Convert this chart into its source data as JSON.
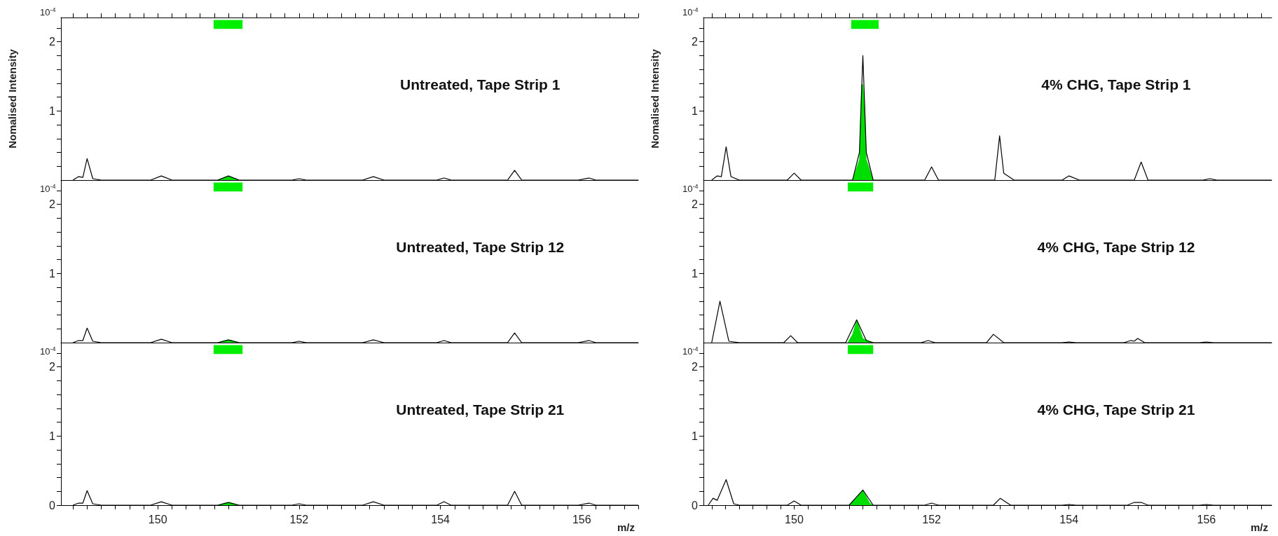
{
  "chart_data": [
    {
      "type": "line",
      "title": "Untreated, Tape Strip 1",
      "ylabel": "Nomalised Intensity",
      "annotations": [
        "10$^{-4}$"
      ],
      "xlim": [
        148.63,
        156.8
      ],
      "ylim": [
        0,
        2.35
      ],
      "tick_labels": "y",
      "grid": false,
      "marker": "none",
      "xticks": [
        {
          "value": 148.8,
          "label": null
        },
        {
          "value": 149,
          "label": null
        },
        {
          "value": 149.2,
          "label": null
        },
        {
          "value": 149.4,
          "label": null
        },
        {
          "value": 149.6,
          "label": null
        },
        {
          "value": 149.8,
          "label": null
        },
        150,
        {
          "value": 150.2,
          "label": null
        },
        {
          "value": 150.4,
          "label": null
        },
        {
          "value": 150.6,
          "label": null
        },
        {
          "value": 150.8,
          "label": null
        },
        {
          "value": 151,
          "label": null
        },
        {
          "value": 151.2,
          "label": null
        },
        {
          "value": 151.4,
          "label": null
        },
        {
          "value": 151.6,
          "label": null
        },
        {
          "value": 151.8,
          "label": null
        },
        152,
        {
          "value": 152.2,
          "label": null
        },
        {
          "value": 152.4,
          "label": null
        },
        {
          "value": 152.6,
          "label": null
        },
        {
          "value": 152.8,
          "label": null
        },
        {
          "value": 153,
          "label": null
        },
        {
          "value": 153.2,
          "label": null
        },
        {
          "value": 153.4,
          "label": null
        },
        {
          "value": 153.6,
          "label": null
        },
        {
          "value": 153.8,
          "label": null
        },
        154,
        {
          "value": 154.2,
          "label": null
        },
        {
          "value": 154.4,
          "label": null
        },
        {
          "value": 154.6,
          "label": null
        },
        {
          "value": 154.8,
          "label": null
        },
        {
          "value": 155,
          "label": null
        },
        {
          "value": 155.2,
          "label": null
        },
        {
          "value": 155.4,
          "label": null
        },
        {
          "value": 155.6,
          "label": null
        },
        {
          "value": 155.8,
          "label": null
        },
        156,
        {
          "value": 156.2,
          "label": null
        },
        {
          "value": 156.4,
          "label": null
        },
        {
          "value": 156.6,
          "label": null
        },
        {
          "value": 156.8,
          "label": null
        }
      ],
      "yticks": [
        {
          "value": 0,
          "label": null
        },
        {
          "value": 0.2,
          "label": null
        },
        {
          "value": 0.4,
          "label": null
        },
        {
          "value": 0.6,
          "label": null
        },
        {
          "value": 0.8,
          "label": null
        },
        1,
        {
          "value": 1.2,
          "label": null
        },
        {
          "value": 1.4,
          "label": null
        },
        {
          "value": 1.6,
          "label": null
        },
        {
          "value": 1.8,
          "label": null
        },
        2,
        {
          "value": 2.2,
          "label": null
        }
      ],
      "bands": [
        {
          "axis": "x",
          "from": 150.79,
          "to": 151.2,
          "color": "#00ee00"
        }
      ],
      "series": [
        {
          "type": "line",
          "color": "#000000",
          "x": [
            148.8,
            148.88,
            148.94,
            149.0,
            149.08,
            149.2,
            149.9,
            150.05,
            150.2,
            150.85,
            151.0,
            151.15,
            151.9,
            152.0,
            152.1,
            152.9,
            153.05,
            153.2,
            153.95,
            154.05,
            154.15,
            154.95,
            155.05,
            155.15,
            155.95,
            156.1,
            156.2,
            156.8
          ],
          "values": [
            0,
            0.05,
            0.04,
            0.31,
            0.02,
            0,
            0,
            0.06,
            0,
            0,
            0.06,
            0,
            0,
            0.02,
            0,
            0,
            0.05,
            0,
            0,
            0.03,
            0,
            0,
            0.14,
            0,
            0,
            0.03,
            0,
            0
          ]
        },
        {
          "type": "area",
          "color": "#00dd00",
          "x": [
            150.85,
            150.95,
            151.0,
            151.05,
            151.15
          ],
          "values": [
            0,
            0.04,
            0.06,
            0.04,
            0
          ]
        }
      ]
    },
    {
      "type": "line",
      "title": "4% CHG, Tape Strip 1",
      "ylabel": "Nomalised Intensity",
      "annotations": [
        "10$^{-4}$"
      ],
      "xlim": [
        148.68,
        156.95
      ],
      "ylim": [
        0,
        2.35
      ],
      "tick_labels": "y",
      "grid": false,
      "marker": "none",
      "xticks": [
        {
          "value": 148.8,
          "label": null
        },
        {
          "value": 149,
          "label": null
        },
        {
          "value": 149.2,
          "label": null
        },
        {
          "value": 149.4,
          "label": null
        },
        {
          "value": 149.6,
          "label": null
        },
        {
          "value": 149.8,
          "label": null
        },
        150,
        {
          "value": 150.2,
          "label": null
        },
        {
          "value": 150.4,
          "label": null
        },
        {
          "value": 150.6,
          "label": null
        },
        {
          "value": 150.8,
          "label": null
        },
        {
          "value": 151,
          "label": null
        },
        {
          "value": 151.2,
          "label": null
        },
        {
          "value": 151.4,
          "label": null
        },
        {
          "value": 151.6,
          "label": null
        },
        {
          "value": 151.8,
          "label": null
        },
        152,
        {
          "value": 152.2,
          "label": null
        },
        {
          "value": 152.4,
          "label": null
        },
        {
          "value": 152.6,
          "label": null
        },
        {
          "value": 152.8,
          "label": null
        },
        {
          "value": 153,
          "label": null
        },
        {
          "value": 153.2,
          "label": null
        },
        {
          "value": 153.4,
          "label": null
        },
        {
          "value": 153.6,
          "label": null
        },
        {
          "value": 153.8,
          "label": null
        },
        154,
        {
          "value": 154.2,
          "label": null
        },
        {
          "value": 154.4,
          "label": null
        },
        {
          "value": 154.6,
          "label": null
        },
        {
          "value": 154.8,
          "label": null
        },
        {
          "value": 155,
          "label": null
        },
        {
          "value": 155.2,
          "label": null
        },
        {
          "value": 155.4,
          "label": null
        },
        {
          "value": 155.6,
          "label": null
        },
        {
          "value": 155.8,
          "label": null
        },
        156,
        {
          "value": 156.2,
          "label": null
        },
        {
          "value": 156.4,
          "label": null
        },
        {
          "value": 156.6,
          "label": null
        },
        {
          "value": 156.8,
          "label": null
        }
      ],
      "yticks": [
        {
          "value": 0,
          "label": null
        },
        {
          "value": 0.2,
          "label": null
        },
        {
          "value": 0.4,
          "label": null
        },
        {
          "value": 0.6,
          "label": null
        },
        {
          "value": 0.8,
          "label": null
        },
        1,
        {
          "value": 1.2,
          "label": null
        },
        {
          "value": 1.4,
          "label": null
        },
        {
          "value": 1.6,
          "label": null
        },
        {
          "value": 1.8,
          "label": null
        },
        2,
        {
          "value": 2.2,
          "label": null
        }
      ],
      "bands": [
        {
          "axis": "x",
          "from": 150.83,
          "to": 151.23,
          "color": "#00ee00"
        }
      ],
      "series": [
        {
          "type": "line",
          "color": "#000000",
          "x": [
            148.8,
            148.88,
            148.94,
            149.01,
            149.08,
            149.2,
            149.9,
            150.0,
            150.1,
            150.85,
            150.95,
            151.0,
            151.05,
            151.15,
            151.9,
            152.0,
            152.1,
            152.92,
            152.99,
            153.05,
            153.2,
            153.9,
            154.0,
            154.15,
            154.95,
            155.05,
            155.15,
            155.95,
            156.05,
            156.15,
            156.95
          ],
          "values": [
            0,
            0.06,
            0.05,
            0.48,
            0.05,
            0,
            0,
            0.1,
            0,
            0,
            0.4,
            1.8,
            0.4,
            0,
            0,
            0.19,
            0,
            0,
            0.64,
            0.1,
            0,
            0,
            0.06,
            0,
            0,
            0.26,
            0,
            0,
            0.02,
            0,
            0
          ]
        },
        {
          "type": "area",
          "color": "#00dd00",
          "x": [
            150.85,
            150.95,
            150.98,
            151.0,
            151.03,
            151.05,
            151.15
          ],
          "values": [
            0,
            0.3,
            1.38,
            1.38,
            1.0,
            0.3,
            0
          ]
        }
      ]
    },
    {
      "type": "line",
      "title": "Untreated, Tape Strip 12",
      "annotations": [
        "10$^{-4}$"
      ],
      "xlim": [
        148.63,
        156.8
      ],
      "ylim": [
        0,
        2.35
      ],
      "tick_labels": "y",
      "grid": false,
      "marker": "none",
      "xticks": [
        {
          "value": 148.8,
          "label": null
        },
        {
          "value": 149,
          "label": null
        },
        {
          "value": 149.2,
          "label": null
        },
        {
          "value": 149.4,
          "label": null
        },
        {
          "value": 149.6,
          "label": null
        },
        {
          "value": 149.8,
          "label": null
        },
        150,
        {
          "value": 150.2,
          "label": null
        },
        {
          "value": 150.4,
          "label": null
        },
        {
          "value": 150.6,
          "label": null
        },
        {
          "value": 150.8,
          "label": null
        },
        {
          "value": 151,
          "label": null
        },
        {
          "value": 151.2,
          "label": null
        },
        {
          "value": 151.4,
          "label": null
        },
        {
          "value": 151.6,
          "label": null
        },
        {
          "value": 151.8,
          "label": null
        },
        152,
        {
          "value": 152.2,
          "label": null
        },
        {
          "value": 152.4,
          "label": null
        },
        {
          "value": 152.6,
          "label": null
        },
        {
          "value": 152.8,
          "label": null
        },
        {
          "value": 153,
          "label": null
        },
        {
          "value": 153.2,
          "label": null
        },
        {
          "value": 153.4,
          "label": null
        },
        {
          "value": 153.6,
          "label": null
        },
        {
          "value": 153.8,
          "label": null
        },
        154,
        {
          "value": 154.2,
          "label": null
        },
        {
          "value": 154.4,
          "label": null
        },
        {
          "value": 154.6,
          "label": null
        },
        {
          "value": 154.8,
          "label": null
        },
        {
          "value": 155,
          "label": null
        },
        {
          "value": 155.2,
          "label": null
        },
        {
          "value": 155.4,
          "label": null
        },
        {
          "value": 155.6,
          "label": null
        },
        {
          "value": 155.8,
          "label": null
        },
        156,
        {
          "value": 156.2,
          "label": null
        },
        {
          "value": 156.4,
          "label": null
        },
        {
          "value": 156.6,
          "label": null
        },
        {
          "value": 156.8,
          "label": null
        }
      ],
      "yticks": [
        {
          "value": 0,
          "label": null
        },
        {
          "value": 0.2,
          "label": null
        },
        {
          "value": 0.4,
          "label": null
        },
        {
          "value": 0.6,
          "label": null
        },
        {
          "value": 0.8,
          "label": null
        },
        1,
        {
          "value": 1.2,
          "label": null
        },
        {
          "value": 1.4,
          "label": null
        },
        {
          "value": 1.6,
          "label": null
        },
        {
          "value": 1.8,
          "label": null
        },
        2,
        {
          "value": 2.2,
          "label": null
        }
      ],
      "bands": [
        {
          "axis": "x",
          "from": 150.79,
          "to": 151.2,
          "color": "#00ee00"
        }
      ],
      "series": [
        {
          "type": "line",
          "color": "#000000",
          "x": [
            148.8,
            148.88,
            148.94,
            149.0,
            149.08,
            149.2,
            149.9,
            150.05,
            150.2,
            150.85,
            151.0,
            151.15,
            151.9,
            152.0,
            152.1,
            152.9,
            153.05,
            153.2,
            153.95,
            154.05,
            154.15,
            154.95,
            155.05,
            155.15,
            155.95,
            156.1,
            156.2,
            156.8
          ],
          "values": [
            0,
            0.03,
            0.03,
            0.21,
            0.02,
            0,
            0,
            0.05,
            0,
            0,
            0.04,
            0,
            0,
            0.02,
            0,
            0,
            0.04,
            0,
            0,
            0.03,
            0,
            0,
            0.14,
            0,
            0,
            0.03,
            0,
            0
          ]
        },
        {
          "type": "area",
          "color": "#00dd00",
          "x": [
            150.85,
            150.95,
            151.0,
            151.05,
            151.15
          ],
          "values": [
            0,
            0.03,
            0.04,
            0.03,
            0
          ]
        }
      ]
    },
    {
      "type": "line",
      "title": "4% CHG, Tape Strip 12",
      "annotations": [
        "10$^{-4}$"
      ],
      "xlim": [
        148.68,
        156.95
      ],
      "ylim": [
        0,
        2.35
      ],
      "tick_labels": "y",
      "grid": false,
      "marker": "none",
      "xticks": [
        {
          "value": 148.8,
          "label": null
        },
        {
          "value": 149,
          "label": null
        },
        {
          "value": 149.2,
          "label": null
        },
        {
          "value": 149.4,
          "label": null
        },
        {
          "value": 149.6,
          "label": null
        },
        {
          "value": 149.8,
          "label": null
        },
        150,
        {
          "value": 150.2,
          "label": null
        },
        {
          "value": 150.4,
          "label": null
        },
        {
          "value": 150.6,
          "label": null
        },
        {
          "value": 150.8,
          "label": null
        },
        {
          "value": 151,
          "label": null
        },
        {
          "value": 151.2,
          "label": null
        },
        {
          "value": 151.4,
          "label": null
        },
        {
          "value": 151.6,
          "label": null
        },
        {
          "value": 151.8,
          "label": null
        },
        152,
        {
          "value": 152.2,
          "label": null
        },
        {
          "value": 152.4,
          "label": null
        },
        {
          "value": 152.6,
          "label": null
        },
        {
          "value": 152.8,
          "label": null
        },
        {
          "value": 153,
          "label": null
        },
        {
          "value": 153.2,
          "label": null
        },
        {
          "value": 153.4,
          "label": null
        },
        {
          "value": 153.6,
          "label": null
        },
        {
          "value": 153.8,
          "label": null
        },
        154,
        {
          "value": 154.2,
          "label": null
        },
        {
          "value": 154.4,
          "label": null
        },
        {
          "value": 154.6,
          "label": null
        },
        {
          "value": 154.8,
          "label": null
        },
        {
          "value": 155,
          "label": null
        },
        {
          "value": 155.2,
          "label": null
        },
        {
          "value": 155.4,
          "label": null
        },
        {
          "value": 155.6,
          "label": null
        },
        {
          "value": 155.8,
          "label": null
        },
        156,
        {
          "value": 156.2,
          "label": null
        },
        {
          "value": 156.4,
          "label": null
        },
        {
          "value": 156.6,
          "label": null
        },
        {
          "value": 156.8,
          "label": null
        }
      ],
      "yticks": [
        {
          "value": 0,
          "label": null
        },
        {
          "value": 0.2,
          "label": null
        },
        {
          "value": 0.4,
          "label": null
        },
        {
          "value": 0.6,
          "label": null
        },
        {
          "value": 0.8,
          "label": null
        },
        1,
        {
          "value": 1.2,
          "label": null
        },
        {
          "value": 1.4,
          "label": null
        },
        {
          "value": 1.6,
          "label": null
        },
        {
          "value": 1.8,
          "label": null
        },
        2,
        {
          "value": 2.2,
          "label": null
        }
      ],
      "bands": [
        {
          "axis": "x",
          "from": 150.78,
          "to": 151.15,
          "color": "#00ee00"
        }
      ],
      "series": [
        {
          "type": "line",
          "color": "#000000",
          "x": [
            148.8,
            148.92,
            149.05,
            149.2,
            149.85,
            149.95,
            150.05,
            150.75,
            150.91,
            151.05,
            151.15,
            151.85,
            151.95,
            152.05,
            152.8,
            152.9,
            153.05,
            153.9,
            154.0,
            154.1,
            154.8,
            154.9,
            154.95,
            155.0,
            155.1,
            155.9,
            156.0,
            156.1,
            156.95
          ],
          "values": [
            0,
            0.6,
            0.02,
            0,
            0,
            0.1,
            0,
            0,
            0.33,
            0.03,
            0,
            0,
            0.03,
            0,
            0,
            0.12,
            0,
            0,
            0.01,
            0,
            0,
            0.03,
            0.02,
            0.06,
            0,
            0,
            0.01,
            0,
            0
          ]
        },
        {
          "type": "area",
          "color": "#00dd00",
          "x": [
            150.78,
            150.85,
            150.91,
            151.0,
            151.15
          ],
          "values": [
            0,
            0.12,
            0.33,
            0.06,
            0
          ]
        }
      ]
    },
    {
      "type": "line",
      "title": "Untreated, Tape Strip 21",
      "xlabel": "m/z",
      "annotations": [
        "10$^{-4}$"
      ],
      "xlim": [
        148.63,
        156.8
      ],
      "ylim": [
        0,
        2.35
      ],
      "grid": false,
      "marker": "none",
      "xticks": [
        {
          "value": 148.8,
          "label": null
        },
        {
          "value": 149,
          "label": null
        },
        {
          "value": 149.2,
          "label": null
        },
        {
          "value": 149.4,
          "label": null
        },
        {
          "value": 149.6,
          "label": null
        },
        {
          "value": 149.8,
          "label": null
        },
        150,
        {
          "value": 150.2,
          "label": null
        },
        {
          "value": 150.4,
          "label": null
        },
        {
          "value": 150.6,
          "label": null
        },
        {
          "value": 150.8,
          "label": null
        },
        {
          "value": 151,
          "label": null
        },
        {
          "value": 151.2,
          "label": null
        },
        {
          "value": 151.4,
          "label": null
        },
        {
          "value": 151.6,
          "label": null
        },
        {
          "value": 151.8,
          "label": null
        },
        152,
        {
          "value": 152.2,
          "label": null
        },
        {
          "value": 152.4,
          "label": null
        },
        {
          "value": 152.6,
          "label": null
        },
        {
          "value": 152.8,
          "label": null
        },
        {
          "value": 153,
          "label": null
        },
        {
          "value": 153.2,
          "label": null
        },
        {
          "value": 153.4,
          "label": null
        },
        {
          "value": 153.6,
          "label": null
        },
        {
          "value": 153.8,
          "label": null
        },
        154,
        {
          "value": 154.2,
          "label": null
        },
        {
          "value": 154.4,
          "label": null
        },
        {
          "value": 154.6,
          "label": null
        },
        {
          "value": 154.8,
          "label": null
        },
        {
          "value": 155,
          "label": null
        },
        {
          "value": 155.2,
          "label": null
        },
        {
          "value": 155.4,
          "label": null
        },
        {
          "value": 155.6,
          "label": null
        },
        {
          "value": 155.8,
          "label": null
        },
        156,
        {
          "value": 156.2,
          "label": null
        },
        {
          "value": 156.4,
          "label": null
        },
        {
          "value": 156.6,
          "label": null
        },
        {
          "value": 156.8,
          "label": null
        }
      ],
      "yticks": [
        0,
        {
          "value": 0.2,
          "label": null
        },
        {
          "value": 0.4,
          "label": null
        },
        {
          "value": 0.6,
          "label": null
        },
        {
          "value": 0.8,
          "label": null
        },
        1,
        {
          "value": 1.2,
          "label": null
        },
        {
          "value": 1.4,
          "label": null
        },
        {
          "value": 1.6,
          "label": null
        },
        {
          "value": 1.8,
          "label": null
        },
        2,
        {
          "value": 2.2,
          "label": null
        }
      ],
      "bands": [
        {
          "axis": "x",
          "from": 150.79,
          "to": 151.2,
          "color": "#00ee00"
        }
      ],
      "series": [
        {
          "type": "line",
          "color": "#000000",
          "x": [
            148.8,
            148.88,
            148.94,
            149.0,
            149.08,
            149.2,
            149.9,
            150.05,
            150.2,
            150.85,
            151.0,
            151.15,
            151.9,
            152.0,
            152.1,
            152.9,
            153.05,
            153.2,
            153.95,
            154.05,
            154.15,
            154.95,
            155.05,
            155.15,
            155.95,
            156.1,
            156.2,
            156.8
          ],
          "values": [
            0,
            0.03,
            0.03,
            0.21,
            0.02,
            0,
            0,
            0.05,
            0,
            0,
            0.04,
            0,
            0,
            0.02,
            0,
            0,
            0.05,
            0,
            0,
            0.05,
            0,
            0,
            0.2,
            0,
            0,
            0.03,
            0,
            0
          ]
        },
        {
          "type": "area",
          "color": "#00dd00",
          "x": [
            150.85,
            150.95,
            151.0,
            151.05,
            151.15
          ],
          "values": [
            0,
            0.03,
            0.04,
            0.03,
            0
          ]
        }
      ]
    },
    {
      "type": "line",
      "title": "4% CHG, Tape Strip 21",
      "xlabel": "m/z",
      "annotations": [
        "10$^{-4}$"
      ],
      "xlim": [
        148.68,
        156.95
      ],
      "ylim": [
        0,
        2.35
      ],
      "grid": false,
      "marker": "none",
      "xticks": [
        {
          "value": 148.8,
          "label": null
        },
        {
          "value": 149,
          "label": null
        },
        {
          "value": 149.2,
          "label": null
        },
        {
          "value": 149.4,
          "label": null
        },
        {
          "value": 149.6,
          "label": null
        },
        {
          "value": 149.8,
          "label": null
        },
        150,
        {
          "value": 150.2,
          "label": null
        },
        {
          "value": 150.4,
          "label": null
        },
        {
          "value": 150.6,
          "label": null
        },
        {
          "value": 150.8,
          "label": null
        },
        {
          "value": 151,
          "label": null
        },
        {
          "value": 151.2,
          "label": null
        },
        {
          "value": 151.4,
          "label": null
        },
        {
          "value": 151.6,
          "label": null
        },
        {
          "value": 151.8,
          "label": null
        },
        152,
        {
          "value": 152.2,
          "label": null
        },
        {
          "value": 152.4,
          "label": null
        },
        {
          "value": 152.6,
          "label": null
        },
        {
          "value": 152.8,
          "label": null
        },
        {
          "value": 153,
          "label": null
        },
        {
          "value": 153.2,
          "label": null
        },
        {
          "value": 153.4,
          "label": null
        },
        {
          "value": 153.6,
          "label": null
        },
        {
          "value": 153.8,
          "label": null
        },
        154,
        {
          "value": 154.2,
          "label": null
        },
        {
          "value": 154.4,
          "label": null
        },
        {
          "value": 154.6,
          "label": null
        },
        {
          "value": 154.8,
          "label": null
        },
        {
          "value": 155,
          "label": null
        },
        {
          "value": 155.2,
          "label": null
        },
        {
          "value": 155.4,
          "label": null
        },
        {
          "value": 155.6,
          "label": null
        },
        {
          "value": 155.8,
          "label": null
        },
        156,
        {
          "value": 156.2,
          "label": null
        },
        {
          "value": 156.4,
          "label": null
        },
        {
          "value": 156.6,
          "label": null
        },
        {
          "value": 156.8,
          "label": null
        }
      ],
      "yticks": [
        0,
        {
          "value": 0.2,
          "label": null
        },
        {
          "value": 0.4,
          "label": null
        },
        {
          "value": 0.6,
          "label": null
        },
        {
          "value": 0.8,
          "label": null
        },
        1,
        {
          "value": 1.2,
          "label": null
        },
        {
          "value": 1.4,
          "label": null
        },
        {
          "value": 1.6,
          "label": null
        },
        {
          "value": 1.8,
          "label": null
        },
        2,
        {
          "value": 2.2,
          "label": null
        }
      ],
      "bands": [
        {
          "axis": "x",
          "from": 150.78,
          "to": 151.15,
          "color": "#00ee00"
        }
      ],
      "series": [
        {
          "type": "line",
          "color": "#000000",
          "x": [
            148.75,
            148.82,
            148.88,
            149.01,
            149.12,
            149.2,
            149.9,
            150.0,
            150.1,
            150.8,
            151.0,
            151.15,
            151.9,
            152.0,
            152.1,
            152.9,
            153.0,
            153.15,
            153.9,
            154.0,
            154.1,
            154.85,
            154.95,
            155.05,
            155.15,
            155.9,
            156.0,
            156.1,
            156.95
          ],
          "values": [
            0,
            0.1,
            0.07,
            0.37,
            0.02,
            0,
            0,
            0.06,
            0,
            0,
            0.22,
            0,
            0,
            0.03,
            0,
            0,
            0.1,
            0,
            0,
            0.01,
            0,
            0,
            0.04,
            0.04,
            0,
            0,
            0.01,
            0,
            0
          ]
        },
        {
          "type": "area",
          "color": "#00dd00",
          "x": [
            150.8,
            150.9,
            151.0,
            151.1,
            151.15
          ],
          "values": [
            0,
            0.1,
            0.22,
            0.03,
            0
          ]
        }
      ]
    }
  ]
}
